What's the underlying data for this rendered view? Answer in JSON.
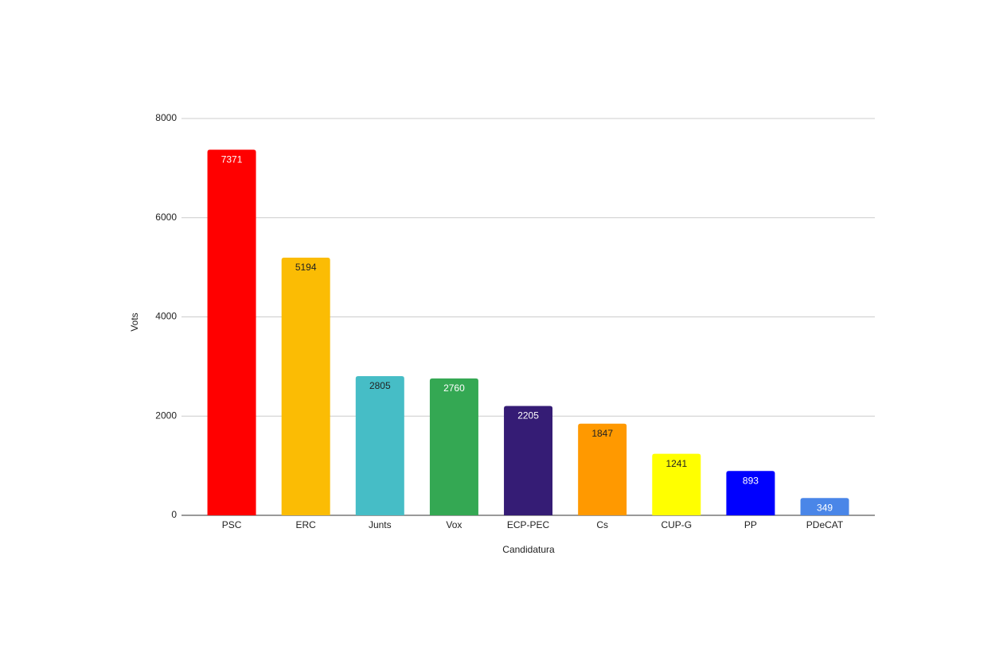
{
  "chart_data": {
    "type": "bar",
    "x_label": "Candidatura",
    "y_label": "Vots",
    "categories": [
      "PSC",
      "ERC",
      "Junts",
      "Vox",
      "ECP-PEC",
      "Cs",
      "CUP-G",
      "PP",
      "PDeCAT"
    ],
    "values": [
      7371,
      5194,
      2805,
      2760,
      2205,
      1847,
      1241,
      893,
      349
    ],
    "colors": [
      "#ff0000",
      "#fbbc04",
      "#46bdc6",
      "#34a853",
      "#351c75",
      "#ff9900",
      "#ffff00",
      "#0000ff",
      "#4a86e8"
    ],
    "ylim": [
      0,
      8000
    ],
    "yticks": [
      0,
      2000,
      4000,
      6000,
      8000
    ],
    "grid": true,
    "data_labels": true
  }
}
